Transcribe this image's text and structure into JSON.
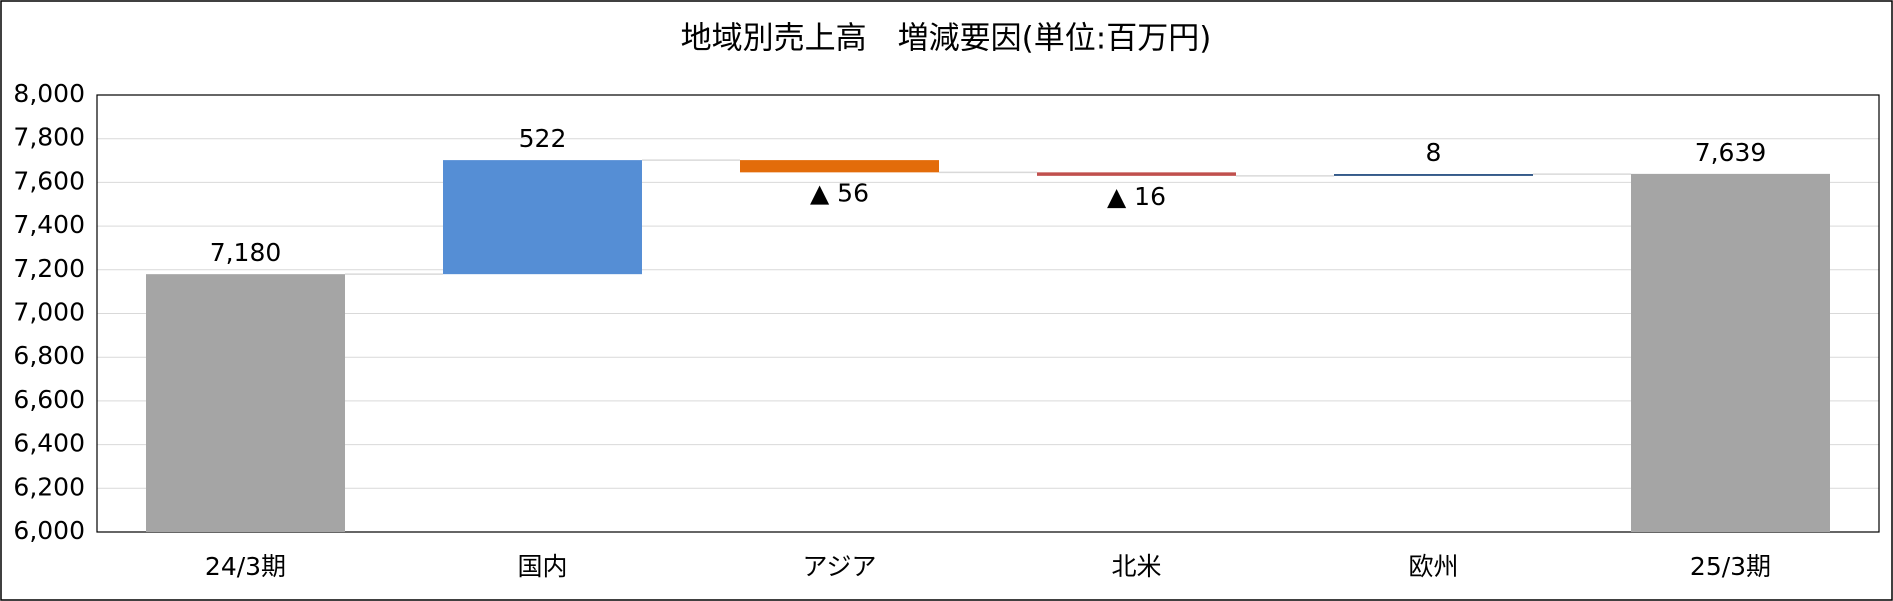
{
  "chart_data": {
    "type": "waterfall",
    "title": "地域別売上高　増減要因(単位:百万円)",
    "categories": [
      "24/3期",
      "国内",
      "アジア",
      "北米",
      "欧州",
      "25/3期"
    ],
    "values": [
      7180,
      522,
      -56,
      -16,
      8,
      7639
    ],
    "value_labels": [
      "7,180",
      "522",
      "▲ 56",
      "▲ 16",
      "8",
      "7,639"
    ],
    "is_total": [
      true,
      false,
      false,
      false,
      false,
      true
    ],
    "colors": [
      "#a5a5a5",
      "#558ed5",
      "#e36c0a",
      "#c0504d",
      "#1f497d",
      "#a5a5a5"
    ],
    "ylim": [
      6000,
      8000
    ],
    "yticks": [
      {
        "value": 6000,
        "label": "6,000"
      },
      {
        "value": 6200,
        "label": "6,200"
      },
      {
        "value": 6400,
        "label": "6,400"
      },
      {
        "value": 6600,
        "label": "6,600"
      },
      {
        "value": 6800,
        "label": "6,800"
      },
      {
        "value": 7000,
        "label": "7,000"
      },
      {
        "value": 7200,
        "label": "7,200"
      },
      {
        "value": 7400,
        "label": "7,400"
      },
      {
        "value": 7600,
        "label": "7,600"
      },
      {
        "value": 7800,
        "label": "7,800"
      },
      {
        "value": 8000,
        "label": "8,000"
      }
    ],
    "grid": true
  }
}
